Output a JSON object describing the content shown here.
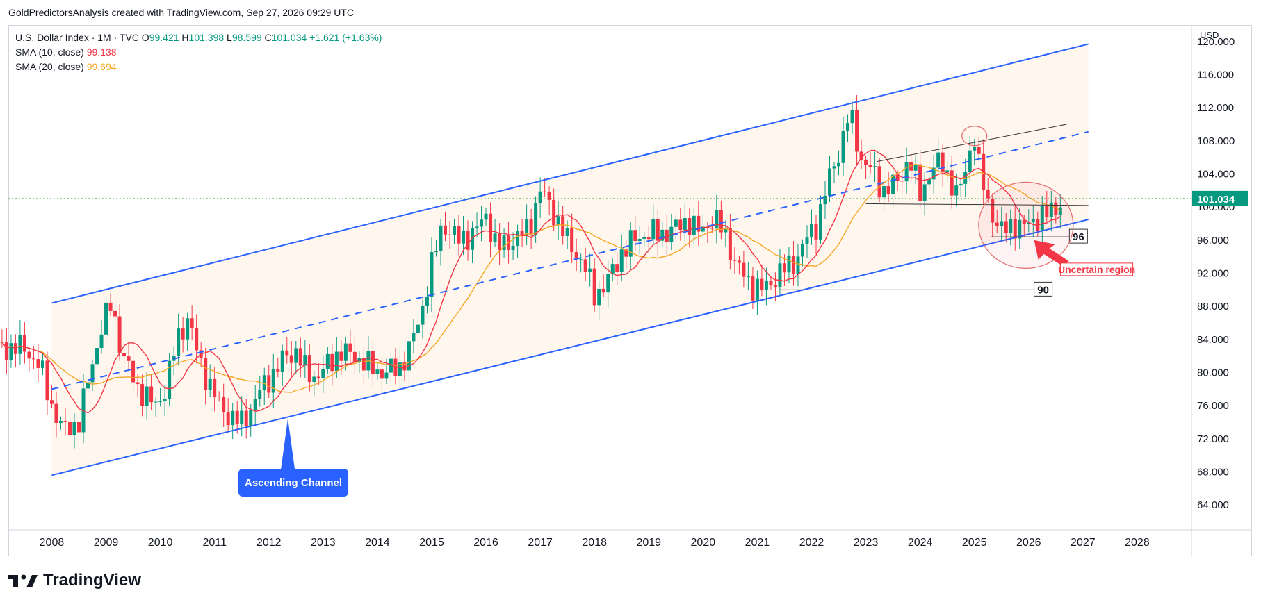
{
  "attribution": "GoldPredictorsAnalysis created with TradingView.com, Sep 27, 2026 09:29 UTC",
  "legend": {
    "symbol": "U.S. Dollar Index · 1M · TVC",
    "open_label": "O",
    "open": "99.421",
    "high_label": "H",
    "high": "101.398",
    "low_label": "L",
    "low": "98.599",
    "close_label": "C",
    "close": "101.034",
    "change": "+1.621 (+1.63%)",
    "sma10_label": "SMA (10, close)",
    "sma10_value": "99.138",
    "sma20_label": "SMA (20, close)",
    "sma20_value": "99.694"
  },
  "currency": "USD",
  "brand": "TradingView",
  "colors": {
    "up": "#089981",
    "down": "#f23645",
    "sma10": "#f23645",
    "sma20": "#f5a623",
    "channel": "#2962ff",
    "channel_fill": "#fff6ee",
    "price_line": "#4caf50"
  },
  "chart_data": {
    "type": "candlestick",
    "x_ticks": [
      "2008",
      "2009",
      "2010",
      "2011",
      "2012",
      "2013",
      "2014",
      "2015",
      "2016",
      "2017",
      "2018",
      "2019",
      "2020",
      "2021",
      "2022",
      "2023",
      "2024",
      "2025",
      "2026",
      "2027",
      "2028"
    ],
    "y_ticks": [
      "64.000",
      "68.000",
      "72.000",
      "76.000",
      "80.000",
      "84.000",
      "88.000",
      "92.000",
      "96.000",
      "100.000",
      "104.000",
      "108.000",
      "112.000",
      "116.000",
      "120.000"
    ],
    "ylim": [
      61,
      122
    ],
    "xlim": [
      2007.2,
      2029.0
    ],
    "last_price": "101.034",
    "annotations": {
      "channel_label": "Ascending Channel",
      "uncertain_label": "Uncertain region",
      "level_96": "96",
      "level_90": "90"
    },
    "approx_close_path": [
      [
        2007.5,
        83.0
      ],
      [
        2007.8,
        80.5
      ],
      [
        2008.0,
        76.0
      ],
      [
        2008.2,
        73.0
      ],
      [
        2008.5,
        74.0
      ],
      [
        2008.7,
        80.0
      ],
      [
        2008.9,
        85.0
      ],
      [
        2009.1,
        88.5
      ],
      [
        2009.3,
        82.0
      ],
      [
        2009.6,
        78.0
      ],
      [
        2009.9,
        76.0
      ],
      [
        2010.1,
        78.0
      ],
      [
        2010.3,
        84.0
      ],
      [
        2010.5,
        86.5
      ],
      [
        2010.7,
        82.0
      ],
      [
        2010.9,
        78.5
      ],
      [
        2011.1,
        76.0
      ],
      [
        2011.3,
        74.5
      ],
      [
        2011.5,
        74.0
      ],
      [
        2011.7,
        76.0
      ],
      [
        2011.9,
        78.5
      ],
      [
        2012.1,
        80.0
      ],
      [
        2012.3,
        82.0
      ],
      [
        2012.5,
        82.5
      ],
      [
        2012.7,
        80.0
      ],
      [
        2012.9,
        79.5
      ],
      [
        2013.1,
        81.0
      ],
      [
        2013.3,
        82.5
      ],
      [
        2013.6,
        82.0
      ],
      [
        2013.9,
        80.5
      ],
      [
        2014.1,
        80.0
      ],
      [
        2014.4,
        80.5
      ],
      [
        2014.6,
        83.0
      ],
      [
        2014.8,
        87.0
      ],
      [
        2015.0,
        93.0
      ],
      [
        2015.2,
        98.0
      ],
      [
        2015.5,
        96.0
      ],
      [
        2015.8,
        97.0
      ],
      [
        2016.0,
        99.0
      ],
      [
        2016.2,
        95.0
      ],
      [
        2016.5,
        96.0
      ],
      [
        2016.8,
        97.5
      ],
      [
        2017.0,
        102.0
      ],
      [
        2017.2,
        100.0
      ],
      [
        2017.5,
        96.0
      ],
      [
        2017.8,
        93.0
      ],
      [
        2018.0,
        89.5
      ],
      [
        2018.2,
        90.5
      ],
      [
        2018.5,
        94.5
      ],
      [
        2018.8,
        96.5
      ],
      [
        2019.1,
        96.8
      ],
      [
        2019.4,
        97.0
      ],
      [
        2019.7,
        98.5
      ],
      [
        2019.9,
        97.0
      ],
      [
        2020.2,
        98.5
      ],
      [
        2020.4,
        97.0
      ],
      [
        2020.6,
        93.0
      ],
      [
        2020.9,
        90.5
      ],
      [
        2021.1,
        90.0
      ],
      [
        2021.4,
        92.0
      ],
      [
        2021.7,
        93.5
      ],
      [
        2021.9,
        96.0
      ],
      [
        2022.1,
        98.0
      ],
      [
        2022.3,
        103.0
      ],
      [
        2022.5,
        106.5
      ],
      [
        2022.7,
        111.5
      ],
      [
        2022.9,
        106.0
      ],
      [
        2023.1,
        104.5
      ],
      [
        2023.3,
        102.0
      ],
      [
        2023.6,
        103.0
      ],
      [
        2023.8,
        106.0
      ],
      [
        2024.0,
        101.5
      ],
      [
        2024.2,
        104.5
      ],
      [
        2024.4,
        105.5
      ],
      [
        2024.7,
        101.0
      ],
      [
        2024.9,
        106.5
      ],
      [
        2025.0,
        108.5
      ],
      [
        2025.1,
        104.0
      ],
      [
        2025.3,
        99.5
      ],
      [
        2025.5,
        97.0
      ],
      [
        2025.7,
        98.0
      ],
      [
        2025.9,
        97.5
      ],
      [
        2026.1,
        98.5
      ],
      [
        2026.3,
        99.0
      ],
      [
        2026.5,
        100.0
      ],
      [
        2026.65,
        101.034
      ]
    ]
  }
}
